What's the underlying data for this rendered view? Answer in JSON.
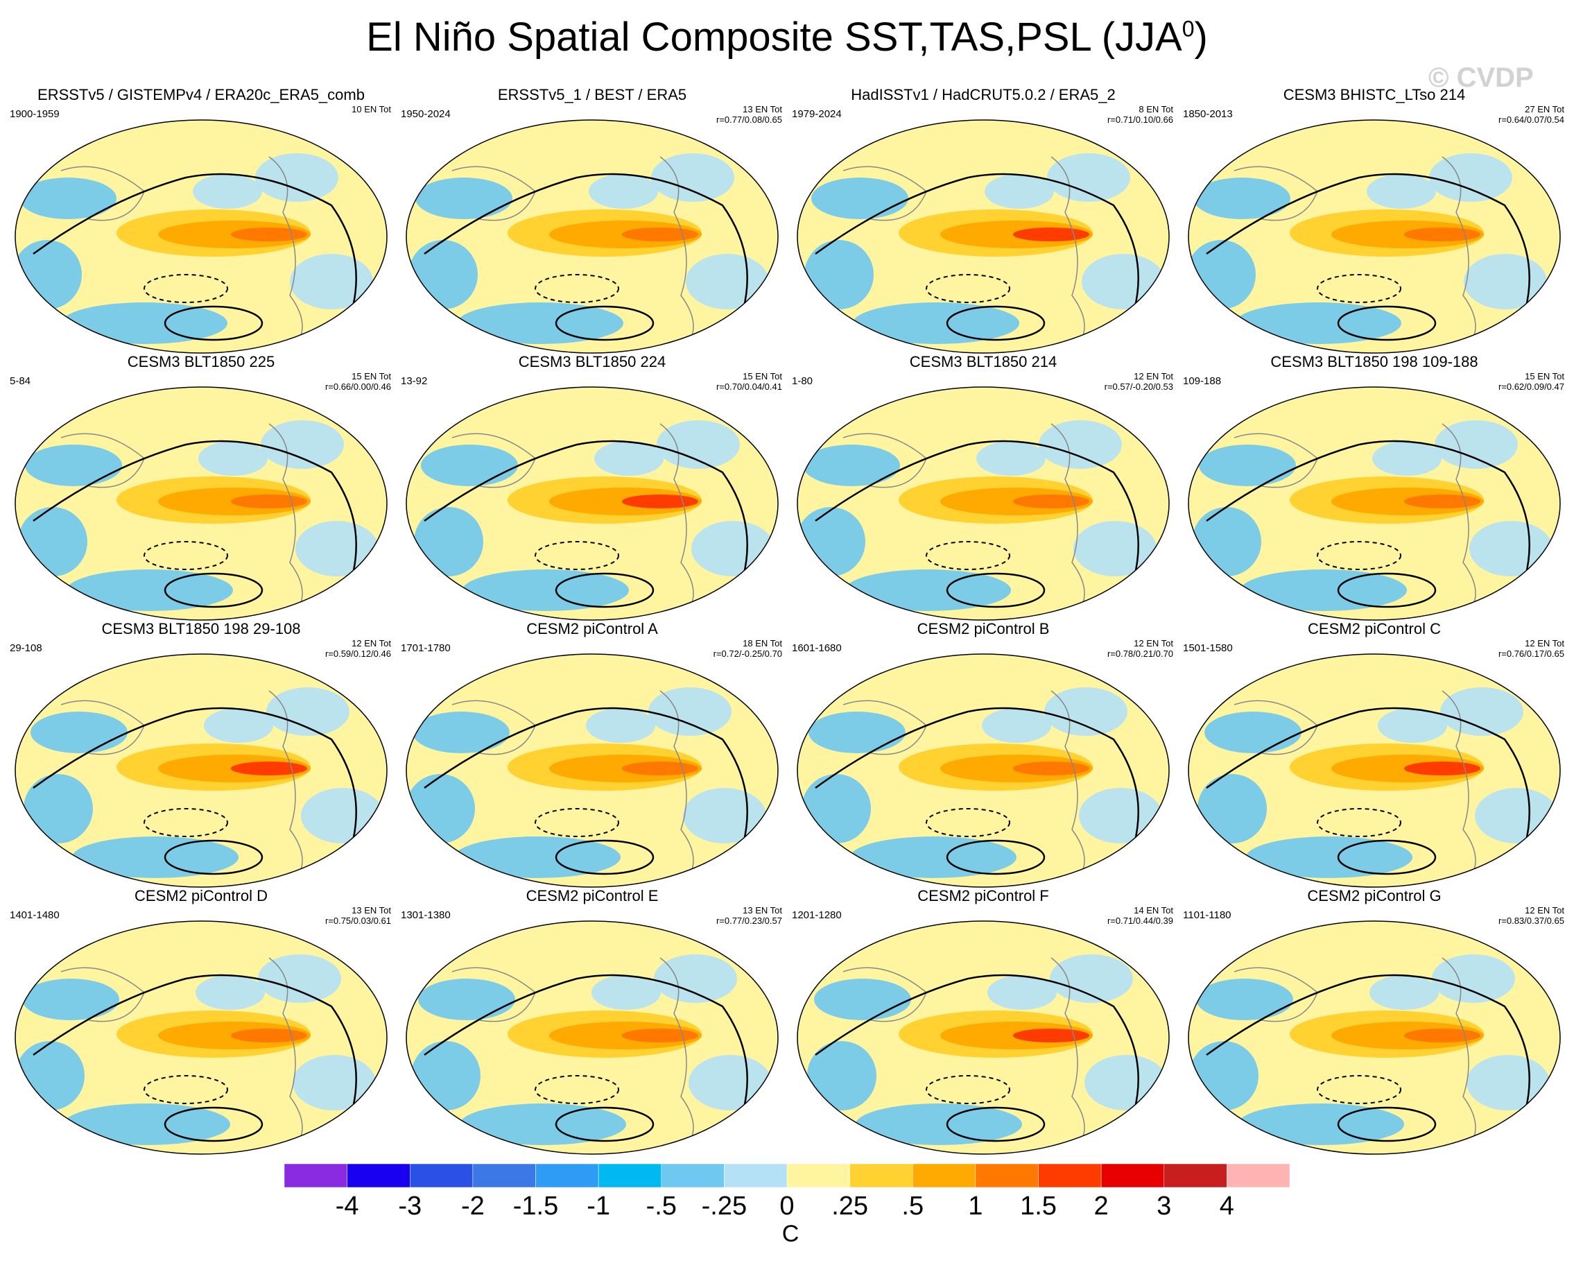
{
  "figure": {
    "title": "El Niño Spatial Composite SST,TAS,PSL (JJA",
    "title_superscript": "0",
    "title_close": ")",
    "watermark": "© CVDP"
  },
  "panels": [
    {
      "title": "ERSSTv5 / GISTEMPv4 / ERA20c_ERA5_comb",
      "years": "1900-1959",
      "events": "10 EN Tot",
      "r": ""
    },
    {
      "title": "ERSSTv5_1 / BEST / ERA5",
      "years": "1950-2024",
      "events": "13 EN Tot",
      "r": "r=0.77/0.08/0.65"
    },
    {
      "title": "HadISSTv1 / HadCRUT5.0.2 / ERA5_2",
      "years": "1979-2024",
      "events": "8 EN Tot",
      "r": "r=0.71/0.10/0.66"
    },
    {
      "title": "CESM3 BHISTC_LTso 214",
      "years": "1850-2013",
      "events": "27 EN Tot",
      "r": "r=0.64/0.07/0.54"
    },
    {
      "title": "CESM3 BLT1850 225",
      "years": "5-84",
      "events": "15 EN Tot",
      "r": "r=0.66/0.00/0.46"
    },
    {
      "title": "CESM3 BLT1850 224",
      "years": "13-92",
      "events": "15 EN Tot",
      "r": "r=0.70/0.04/0.41"
    },
    {
      "title": "CESM3 BLT1850 214",
      "years": "1-80",
      "events": "12 EN Tot",
      "r": "r=0.57/-0.20/0.53"
    },
    {
      "title": "CESM3 BLT1850 198 109-188",
      "years": "109-188",
      "events": "15 EN Tot",
      "r": "r=0.62/0.09/0.47"
    },
    {
      "title": "CESM3 BLT1850 198 29-108",
      "years": "29-108",
      "events": "12 EN Tot",
      "r": "r=0.59/0.12/0.46"
    },
    {
      "title": "CESM2 piControl A",
      "years": "1701-1780",
      "events": "18 EN Tot",
      "r": "r=0.72/-0.25/0.70"
    },
    {
      "title": "CESM2 piControl B",
      "years": "1601-1680",
      "events": "12 EN Tot",
      "r": "r=0.78/0.21/0.70"
    },
    {
      "title": "CESM2 piControl C",
      "years": "1501-1580",
      "events": "12 EN Tot",
      "r": "r=0.76/0.17/0.65"
    },
    {
      "title": "CESM2 piControl D",
      "years": "1401-1480",
      "events": "13 EN Tot",
      "r": "r=0.75/0.03/0.61"
    },
    {
      "title": "CESM2 piControl E",
      "years": "1301-1380",
      "events": "13 EN Tot",
      "r": "r=0.77/0.23/0.57"
    },
    {
      "title": "CESM2 piControl F",
      "years": "1201-1280",
      "events": "14 EN Tot",
      "r": "r=0.71/0.44/0.39"
    },
    {
      "title": "CESM2 piControl G",
      "years": "1101-1180",
      "events": "12 EN Tot",
      "r": "r=0.83/0.37/0.65"
    }
  ],
  "colorbar": {
    "labels": [
      "-4",
      "-3",
      "-2",
      "-1.5",
      "-1",
      "-.5",
      "-.25",
      "0",
      ".25",
      ".5",
      "1",
      "1.5",
      "2",
      "3",
      "4"
    ],
    "colors": [
      "#8a2be2",
      "#1a00f0",
      "#2b50e6",
      "#3c78e6",
      "#2e9bf5",
      "#00b9f0",
      "#6ec8f0",
      "#b4e1f5",
      "#fff5a0",
      "#ffd232",
      "#ffaa00",
      "#ff7800",
      "#ff3c00",
      "#e60000",
      "#c81e1e",
      "#ffb4b4"
    ],
    "unit": "C"
  }
}
